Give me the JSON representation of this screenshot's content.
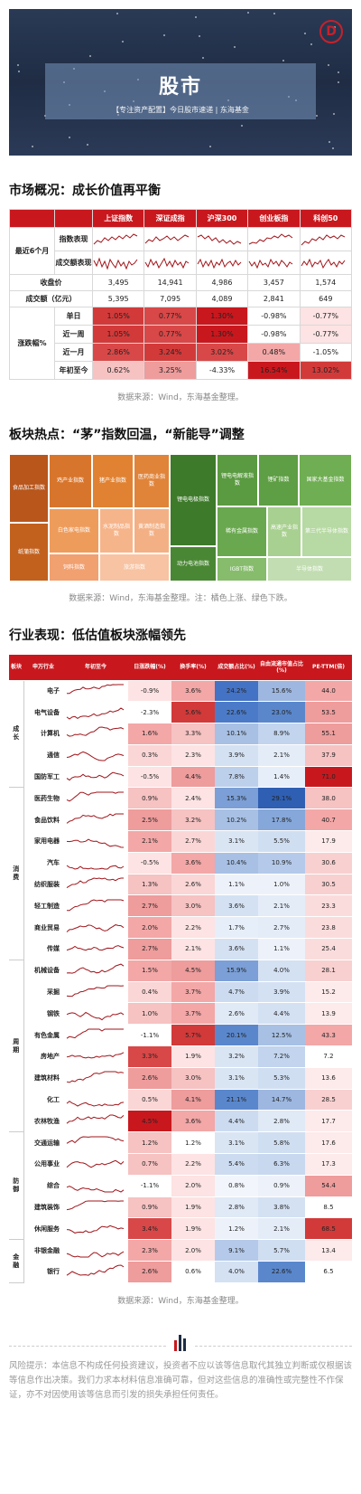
{
  "banner": {
    "title": "股市",
    "subtitle": "【专注资产配置】今日股市速递 | 东海基金",
    "logo_icon": "donghai-logo-icon"
  },
  "market": {
    "section_title": "市场概况：成长价值再平衡",
    "columns": [
      "上证指数",
      "深证成指",
      "沪深300",
      "创业板指",
      "科创50"
    ],
    "trend_group_label": "最近6个月",
    "trend_rows": [
      "指数表现",
      "成交额表现"
    ],
    "close_label": "收盘价",
    "close_values": [
      "3,495",
      "14,941",
      "4,986",
      "3,457",
      "1,574"
    ],
    "turnover_label": "成交额（亿元）",
    "turnover_values": [
      "5,395",
      "7,095",
      "4,089",
      "2,841",
      "649"
    ],
    "change_group_label": "涨跌幅%",
    "change_rows": [
      {
        "label": "单日",
        "values": [
          "1.05%",
          "0.77%",
          "1.30%",
          "-0.98%",
          "-0.77%"
        ],
        "colors": [
          "#d23a3a",
          "#d84848",
          "#c8181e",
          "#ffffff",
          "#fde3e3"
        ]
      },
      {
        "label": "近一周",
        "values": [
          "1.05%",
          "0.77%",
          "1.30%",
          "-0.98%",
          "-0.77%"
        ],
        "colors": [
          "#d23a3a",
          "#d84848",
          "#c8181e",
          "#ffffff",
          "#fde3e3"
        ]
      },
      {
        "label": "近一月",
        "values": [
          "2.86%",
          "3.24%",
          "3.02%",
          "0.48%",
          "-1.05%"
        ],
        "colors": [
          "#d84848",
          "#d23a3a",
          "#d84848",
          "#f3a7a7",
          "#ffffff"
        ]
      },
      {
        "label": "年初至今",
        "values": [
          "0.62%",
          "3.25%",
          "-4.33%",
          "16.54%",
          "13.02%"
        ],
        "colors": [
          "#f6c2c2",
          "#ee9c9c",
          "#ffffff",
          "#c8181e",
          "#d23a3a"
        ]
      }
    ],
    "source": "数据来源：Wind，东海基金整理。"
  },
  "sectors": {
    "section_title": "板块热点：“茅”指数回温，“新能导”调整",
    "cells": [
      {
        "label": "食品加工指数",
        "color": "#b8561c"
      },
      {
        "label": "纸蒲指数",
        "color": "#c2611e"
      },
      {
        "label": "鸡产业指数",
        "color": "#d8752c"
      },
      {
        "label": "猪产业指数",
        "color": "#e08232"
      },
      {
        "label": "医药商业指数",
        "color": "#e0843a"
      },
      {
        "label": "白色家电指数",
        "color": "#ee9c5c"
      },
      {
        "label": "水泥制品指数",
        "color": "#f6b48a"
      },
      {
        "label": "黄酒制造指数",
        "color": "#f3b085"
      },
      {
        "label": "饲料指数",
        "color": "#f1a070"
      },
      {
        "label": "旅游指数",
        "color": "#f7c3a2"
      },
      {
        "label": "锂电电极指数",
        "color": "#3d7a2a"
      },
      {
        "label": "动力电池指数",
        "color": "#4a8734"
      },
      {
        "label": "锂电电解液指数",
        "color": "#5a9a40"
      },
      {
        "label": "稀有金属指数",
        "color": "#6aa84f"
      },
      {
        "label": "IGBT指数",
        "color": "#86bc6c"
      },
      {
        "label": "锂矿指数",
        "color": "#5e9e44"
      },
      {
        "label": "国家大基金指数",
        "color": "#6fae52"
      },
      {
        "label": "高速产业指数",
        "color": "#a8d090"
      },
      {
        "label": "第三代半导体指数",
        "color": "#b7d9a3"
      },
      {
        "label": "半导体指数",
        "color": "#c2ddb1"
      }
    ],
    "source": "数据来源：Wind，东海基金整理。注：橘色上涨、绿色下跌。"
  },
  "industry": {
    "section_title": "行业表现：低估值板块涨幅领先",
    "headers": [
      "板块",
      "申万行业",
      "年初至今",
      "日涨跌幅(%)",
      "换手率(%)",
      "成交额占比(%)",
      "自由流通市值占比(%)",
      "PE-TTM(倍)"
    ],
    "groups": [
      {
        "name": "成长",
        "rows": [
          {
            "name": "电子",
            "v": [
              "-0.9%",
              "3.6%",
              "24.2%",
              "15.6%",
              "44.0"
            ],
            "c": [
              "#fde3e3",
              "#f3a7a7",
              "#4472c4",
              "#9db7e0",
              "#f3a7a7"
            ]
          },
          {
            "name": "电气设备",
            "v": [
              "-2.3%",
              "5.6%",
              "22.6%",
              "23.0%",
              "53.5"
            ],
            "c": [
              "#ffffff",
              "#d23a3a",
              "#4b7bc8",
              "#5a87cc",
              "#ee9c9c"
            ]
          },
          {
            "name": "计算机",
            "v": [
              "1.6%",
              "3.3%",
              "10.1%",
              "8.9%",
              "55.1"
            ],
            "c": [
              "#f3a7a7",
              "#f6c2c2",
              "#a7c0e4",
              "#c2d4ee",
              "#ee9c9c"
            ]
          },
          {
            "name": "通信",
            "v": [
              "0.3%",
              "2.3%",
              "3.9%",
              "2.1%",
              "37.9"
            ],
            "c": [
              "#fbd6d6",
              "#fde3e3",
              "#d4e1f3",
              "#e4ecf8",
              "#f6c2c2"
            ]
          },
          {
            "name": "国防军工",
            "v": [
              "-0.5%",
              "4.4%",
              "7.8%",
              "1.4%",
              "71.0"
            ],
            "c": [
              "#fde3e3",
              "#ee9c9c",
              "#bccfeb",
              "#e6eef9",
              "#c8181e"
            ]
          }
        ]
      },
      {
        "name": "消费",
        "rows": [
          {
            "name": "医药生物",
            "v": [
              "0.9%",
              "2.4%",
              "15.3%",
              "29.1%",
              "38.0"
            ],
            "c": [
              "#f6c2c2",
              "#fde3e3",
              "#7b9fd6",
              "#2f5fb3",
              "#f6c2c2"
            ]
          },
          {
            "name": "食品饮料",
            "v": [
              "2.5%",
              "3.2%",
              "10.2%",
              "17.8%",
              "40.7"
            ],
            "c": [
              "#ee9c9c",
              "#f6c2c2",
              "#a7c0e4",
              "#86a7d9",
              "#f3a7a7"
            ]
          },
          {
            "name": "家用电器",
            "v": [
              "2.1%",
              "2.7%",
              "3.1%",
              "5.5%",
              "17.9"
            ],
            "c": [
              "#f3a7a7",
              "#fbd6d6",
              "#dae5f4",
              "#d0def2",
              "#fdeaea"
            ]
          },
          {
            "name": "汽车",
            "v": [
              "-0.5%",
              "3.6%",
              "10.4%",
              "10.9%",
              "30.6"
            ],
            "c": [
              "#fde3e3",
              "#f3a7a7",
              "#a7c0e4",
              "#b5caea",
              "#f8d0d0"
            ]
          },
          {
            "name": "纺织服装",
            "v": [
              "1.3%",
              "2.6%",
              "1.1%",
              "1.0%",
              "30.5"
            ],
            "c": [
              "#f6c2c2",
              "#fbd6d6",
              "#edf2fa",
              "#edf2fa",
              "#f8d0d0"
            ]
          },
          {
            "name": "轻工制造",
            "v": [
              "2.7%",
              "3.0%",
              "3.6%",
              "2.1%",
              "23.3"
            ],
            "c": [
              "#ee9c9c",
              "#f6c2c2",
              "#d4e1f3",
              "#e4ecf8",
              "#fbdcdc"
            ]
          },
          {
            "name": "商业贸易",
            "v": [
              "2.0%",
              "2.2%",
              "1.7%",
              "2.7%",
              "23.8"
            ],
            "c": [
              "#f3a7a7",
              "#fde3e3",
              "#e6eef9",
              "#e4ecf8",
              "#fbdcdc"
            ]
          },
          {
            "name": "传媒",
            "v": [
              "2.7%",
              "2.1%",
              "3.6%",
              "1.1%",
              "25.4"
            ],
            "c": [
              "#ee9c9c",
              "#fde3e3",
              "#d4e1f3",
              "#edf2fa",
              "#fbdcdc"
            ]
          }
        ]
      },
      {
        "name": "周期",
        "rows": [
          {
            "name": "机械设备",
            "v": [
              "1.5%",
              "4.5%",
              "15.9%",
              "4.0%",
              "28.1"
            ],
            "c": [
              "#f3a7a7",
              "#ee9c9c",
              "#7b9fd6",
              "#d4e1f3",
              "#f8d0d0"
            ]
          },
          {
            "name": "采掘",
            "v": [
              "0.4%",
              "3.7%",
              "4.7%",
              "3.9%",
              "15.2"
            ],
            "c": [
              "#fbd6d6",
              "#f3a7a7",
              "#ccdbf0",
              "#d4e1f3",
              "#fdeaea"
            ]
          },
          {
            "name": "钢铁",
            "v": [
              "1.0%",
              "3.7%",
              "2.6%",
              "4.4%",
              "13.9"
            ],
            "c": [
              "#f6c2c2",
              "#f3a7a7",
              "#e0e9f6",
              "#d4e1f3",
              "#fdeaea"
            ]
          },
          {
            "name": "有色金属",
            "v": [
              "-1.1%",
              "5.7%",
              "20.1%",
              "12.5%",
              "43.3"
            ],
            "c": [
              "#ffffff",
              "#d23a3a",
              "#5a87cc",
              "#a7c0e4",
              "#f3a7a7"
            ]
          },
          {
            "name": "房地产",
            "v": [
              "3.3%",
              "1.9%",
              "3.2%",
              "7.2%",
              "7.2"
            ],
            "c": [
              "#d84848",
              "#fde3e3",
              "#dae5f4",
              "#c2d4ee",
              "#ffffff"
            ]
          },
          {
            "name": "建筑材料",
            "v": [
              "2.6%",
              "3.0%",
              "3.1%",
              "5.3%",
              "13.6"
            ],
            "c": [
              "#ee9c9c",
              "#f6c2c2",
              "#dae5f4",
              "#d0def2",
              "#fdeaea"
            ]
          },
          {
            "name": "化工",
            "v": [
              "0.5%",
              "4.1%",
              "21.1%",
              "14.7%",
              "28.5"
            ],
            "c": [
              "#fbd6d6",
              "#ee9c9c",
              "#5a87cc",
              "#9db7e0",
              "#f8d0d0"
            ]
          },
          {
            "name": "农林牧渔",
            "v": [
              "4.5%",
              "3.6%",
              "4.4%",
              "2.8%",
              "17.7"
            ],
            "c": [
              "#c8181e",
              "#f3a7a7",
              "#ccdbf0",
              "#e0e9f6",
              "#fdeaea"
            ]
          }
        ]
      },
      {
        "name": "防御",
        "rows": [
          {
            "name": "交通运输",
            "v": [
              "1.2%",
              "1.2%",
              "3.1%",
              "5.8%",
              "17.6"
            ],
            "c": [
              "#f6c2c2",
              "#ffffff",
              "#dae5f4",
              "#d0def2",
              "#fdeaea"
            ]
          },
          {
            "name": "公用事业",
            "v": [
              "0.7%",
              "2.2%",
              "5.4%",
              "6.3%",
              "17.3"
            ],
            "c": [
              "#f6c2c2",
              "#fde3e3",
              "#ccdbf0",
              "#c8d8ef",
              "#fdeaea"
            ]
          },
          {
            "name": "综合",
            "v": [
              "-1.1%",
              "2.0%",
              "0.8%",
              "0.9%",
              "54.4"
            ],
            "c": [
              "#ffffff",
              "#fde3e3",
              "#f2f6fc",
              "#edf2fa",
              "#ee9c9c"
            ]
          },
          {
            "name": "建筑装饰",
            "v": [
              "0.9%",
              "1.9%",
              "2.8%",
              "3.8%",
              "8.5"
            ],
            "c": [
              "#f6c2c2",
              "#fde3e3",
              "#e0e9f6",
              "#d4e1f3",
              "#ffffff"
            ]
          },
          {
            "name": "休闲服务",
            "v": [
              "3.4%",
              "1.9%",
              "1.2%",
              "2.1%",
              "68.5"
            ],
            "c": [
              "#d84848",
              "#fde3e3",
              "#edf2fa",
              "#e4ecf8",
              "#d23a3a"
            ]
          }
        ]
      },
      {
        "name": "金融",
        "rows": [
          {
            "name": "非银金融",
            "v": [
              "2.3%",
              "2.0%",
              "9.1%",
              "5.7%",
              "13.4"
            ],
            "c": [
              "#f3a7a7",
              "#fde3e3",
              "#b5caea",
              "#d0def2",
              "#fdeaea"
            ]
          },
          {
            "name": "银行",
            "v": [
              "2.6%",
              "0.6%",
              "4.0%",
              "22.6%",
              "6.5"
            ],
            "c": [
              "#ee9c9c",
              "#ffffff",
              "#d4e1f3",
              "#5a87cc",
              "#ffffff"
            ]
          }
        ]
      }
    ],
    "source": "数据来源：Wind，东海基金整理。"
  },
  "risk": {
    "text": "风险提示：本信息不构成任何投资建议，投资者不应以该等信息取代其独立判断或仅根据该等信息作出决策。我们力求本材料信息准确可靠，但对这些信息的准确性或完整性不作保证，亦不对因使用该等信息而引发的损失承担任何责任。"
  }
}
